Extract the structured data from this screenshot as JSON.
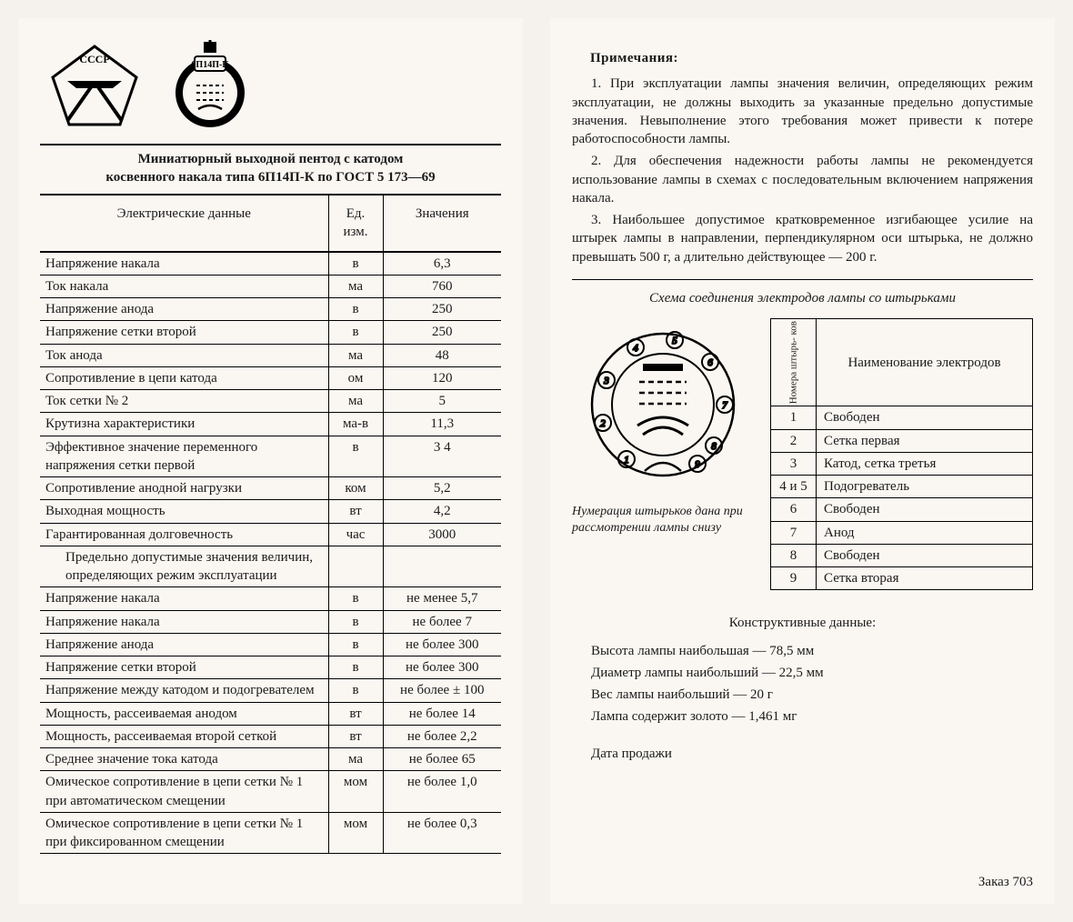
{
  "left": {
    "logo_cccp": "СССР",
    "tube_label": "6П14П-К",
    "title_line1": "Миниатюрный выходной пентод с катодом",
    "title_line2": "косвенного накала типа 6П14П-К по ГОСТ 5 173—69",
    "th_param": "Электрические данные",
    "th_unit": "Ед. изм.",
    "th_value": "Значения",
    "rows": [
      {
        "p": "Напряжение накала",
        "u": "в",
        "v": "6,3"
      },
      {
        "p": "Ток накала",
        "u": "ма",
        "v": "760"
      },
      {
        "p": "Напряжение анода",
        "u": "в",
        "v": "250"
      },
      {
        "p": "Напряжение сетки второй",
        "u": "в",
        "v": "250"
      },
      {
        "p": "Ток анода",
        "u": "ма",
        "v": "48"
      },
      {
        "p": "Сопротивление в цепи катода",
        "u": "ом",
        "v": "120"
      },
      {
        "p": "Ток сетки № 2",
        "u": "ма",
        "v": "5"
      },
      {
        "p": "Крутизна характеристики",
        "u": "ма-в",
        "v": "11,3"
      },
      {
        "p": "Эффективное значение переменного напряжения сетки первой",
        "u": "в",
        "v": "3 4"
      },
      {
        "p": "Сопротивление анодной нагрузки",
        "u": "ком",
        "v": "5,2"
      },
      {
        "p": "Выходная мощность",
        "u": "вт",
        "v": "4,2"
      },
      {
        "p": "Гарантированная долговечность",
        "u": "час",
        "v": "3000"
      }
    ],
    "limits_header": "Предельно допустимые значения величин, определяющих режим эксплуатации",
    "limits": [
      {
        "p": "Напряжение накала",
        "u": "в",
        "v": "не менее 5,7"
      },
      {
        "p": "Напряжение накала",
        "u": "в",
        "v": "не более 7"
      },
      {
        "p": "Напряжение анода",
        "u": "в",
        "v": "не более 300"
      },
      {
        "p": "Напряжение сетки второй",
        "u": "в",
        "v": "не более 300"
      },
      {
        "p": "Напряжение между катодом и подогревателем",
        "u": "в",
        "v": "не более ± 100"
      },
      {
        "p": "Мощность, рассеиваемая анодом",
        "u": "вт",
        "v": "не более 14"
      },
      {
        "p": "Мощность, рассеиваемая второй сеткой",
        "u": "вт",
        "v": "не более 2,2"
      },
      {
        "p": "Среднее значение тока катода",
        "u": "ма",
        "v": "не более 65"
      },
      {
        "p": "Омическое сопротивление в цепи сетки № 1 при автоматическом смещении",
        "u": "мом",
        "v": "не более 1,0"
      },
      {
        "p": "Омическое сопротивление в цепи сетки № 1 при фиксированном смещении",
        "u": "мом",
        "v": "не более 0,3"
      }
    ]
  },
  "right": {
    "notes_header": "Примечания:",
    "notes": [
      "1. При эксплуатации лампы значения величин, определяющих режим эксплуатации, не должны выходить за указанные предельно допустимые значения. Невыполнение этого требования может привести к потере работоспособности лампы.",
      "2. Для обеспечения надежности работы лампы не рекомендуется использование лампы в схемах с последовательным включением напряжения накала.",
      "3. Наибольшее допустимое кратковременное изгибающее усилие на штырек лампы в направлении, перпендикулярном оси штырька, не должно превышать 500 г, а длительно действующее — 200 г."
    ],
    "schema_title": "Схема соединения электродов лампы со штырьками",
    "schema_caption": "Нумерация штырьков дана при рассмотрении лампы снизу",
    "pin_th_num": "Номера штырь- ков",
    "pin_th_name": "Наименование электродов",
    "pins": [
      {
        "n": "1",
        "name": "Свободен"
      },
      {
        "n": "2",
        "name": "Сетка первая"
      },
      {
        "n": "3",
        "name": "Катод, сетка третья"
      },
      {
        "n": "4 и 5",
        "name": "Подогреватель"
      },
      {
        "n": "6",
        "name": "Свободен"
      },
      {
        "n": "7",
        "name": "Анод"
      },
      {
        "n": "8",
        "name": "Свободен"
      },
      {
        "n": "9",
        "name": "Сетка вторая"
      }
    ],
    "constr_header": "Конструктивные данные:",
    "constr": [
      "Высота лампы наибольшая — 78,5 мм",
      "Диаметр лампы наибольший — 22,5 мм",
      "Вес лампы наибольший — 20 г",
      "Лампа содержит золото — 1,461 мг"
    ],
    "sale_date": "Дата продажи",
    "footer": "Заказ 703"
  },
  "style": {
    "page_bg": "#faf7f2",
    "body_bg": "#f5f2ed",
    "text_color": "#1a1a1a",
    "rule_color": "#000000",
    "font_family": "Times New Roman"
  }
}
